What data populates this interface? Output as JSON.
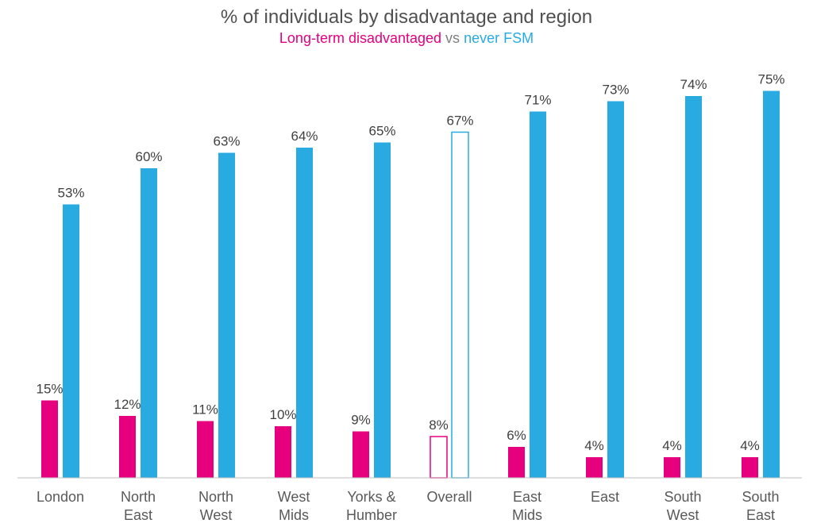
{
  "chart_data": {
    "type": "bar",
    "title": "% of individuals by disadvantage and region",
    "subtitle": {
      "part1": "Long-term disadvantaged",
      "part2": " vs ",
      "part3": "never FSM"
    },
    "categories": [
      [
        "London"
      ],
      [
        "North",
        "East"
      ],
      [
        "North",
        "West"
      ],
      [
        "West",
        "Mids"
      ],
      [
        "Yorks &",
        "Humber"
      ],
      [
        "Overall"
      ],
      [
        "East",
        "Mids"
      ],
      [
        "East"
      ],
      [
        "South",
        "West"
      ],
      [
        "South",
        "East"
      ]
    ],
    "series": [
      {
        "name": "Long-term disadvantaged",
        "color": "#e6007e",
        "values": [
          15,
          12,
          11,
          10,
          9,
          8,
          6,
          4,
          4,
          4
        ],
        "labels": [
          "15%",
          "12%",
          "11%",
          "10%",
          "9%",
          "8%",
          "6%",
          "4%",
          "4%",
          "4%"
        ]
      },
      {
        "name": "never FSM",
        "color": "#29abe2",
        "values": [
          53,
          60,
          63,
          64,
          65,
          67,
          71,
          73,
          74,
          75
        ],
        "labels": [
          "53%",
          "60%",
          "63%",
          "64%",
          "65%",
          "67%",
          "71%",
          "73%",
          "74%",
          "75%"
        ]
      }
    ],
    "highlight_category": "Overall",
    "ylim": [
      0,
      80
    ],
    "grid": false,
    "legend": "none"
  }
}
